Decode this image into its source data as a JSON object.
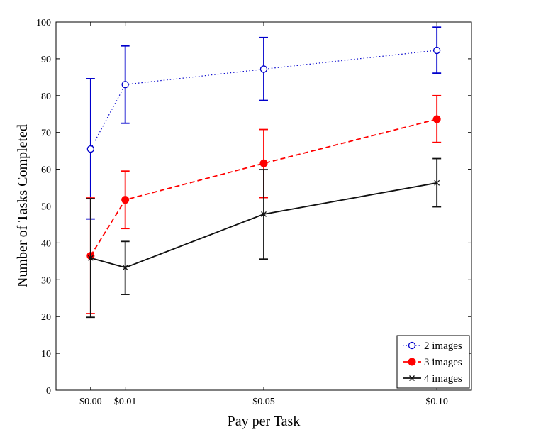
{
  "chart_data": {
    "type": "line",
    "title": "",
    "xlabel": "Pay per Task",
    "ylabel": "Number of Tasks Completed",
    "x": [
      0.0,
      0.01,
      0.05,
      0.1
    ],
    "x_tick_labels": [
      "$0.00",
      "$0.01",
      "$0.05",
      "$0.10"
    ],
    "xlim": [
      -0.01,
      0.11
    ],
    "ylim": [
      0,
      100
    ],
    "y_ticks": [
      0,
      10,
      20,
      30,
      40,
      50,
      60,
      70,
      80,
      90,
      100
    ],
    "grid": false,
    "legend_position": "bottom-right",
    "series": [
      {
        "name": "2 images",
        "color": "#0000cc",
        "line_style": "dotted",
        "marker": "open-circle",
        "values": [
          65.5,
          83.0,
          87.2,
          92.3
        ],
        "error_low": [
          46.5,
          72.5,
          78.7,
          86.1
        ],
        "error_high": [
          84.6,
          93.5,
          95.8,
          98.6
        ]
      },
      {
        "name": "3 images",
        "color": "#ff0000",
        "line_style": "dashed",
        "marker": "filled-circle",
        "values": [
          36.5,
          51.7,
          61.6,
          73.6
        ],
        "error_low": [
          20.8,
          43.9,
          52.3,
          67.3
        ],
        "error_high": [
          52.2,
          59.5,
          70.8,
          80.0
        ]
      },
      {
        "name": "4 images",
        "color": "#111111",
        "line_style": "solid",
        "marker": "x",
        "values": [
          35.9,
          33.3,
          47.8,
          56.3
        ],
        "error_low": [
          19.8,
          26.0,
          35.6,
          49.8
        ],
        "error_high": [
          52.0,
          40.4,
          59.9,
          62.9
        ]
      }
    ]
  }
}
